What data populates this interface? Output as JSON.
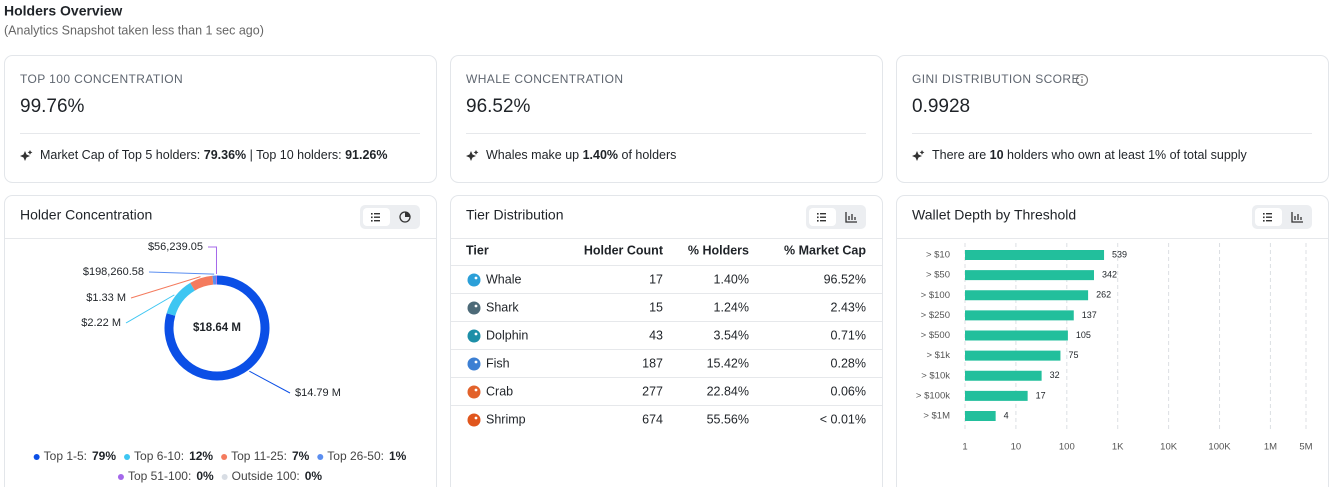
{
  "header": {
    "title": "Holders Overview",
    "subtitle": "(Analytics Snapshot taken less than 1 sec ago)"
  },
  "stats": [
    {
      "label": "TOP 100 CONCENTRATION",
      "value": "99.76%",
      "note": [
        "Market Cap of Top 5 holders: ",
        "79.36%",
        " | Top 10 holders: ",
        "91.26%"
      ]
    },
    {
      "label": "WHALE CONCENTRATION",
      "value": "96.52%",
      "note": [
        "Whales make up ",
        "1.40%",
        " of holders"
      ]
    },
    {
      "label": "GINI DISTRIBUTION SCORE",
      "value": "0.9928",
      "note": [
        "There are ",
        "10",
        " holders who own at least 1% of total supply"
      ]
    }
  ],
  "tier_table": {
    "title": "Tier Distribution",
    "columns": [
      "Tier",
      "Holder Count",
      "% Holders",
      "% Market Cap"
    ],
    "rows": [
      [
        "Whale",
        17,
        "1.40%",
        "96.52%"
      ],
      [
        "Shark",
        15,
        "1.24%",
        "2.43%"
      ],
      [
        "Dolphin",
        43,
        "3.54%",
        "0.71%"
      ],
      [
        "Fish",
        187,
        "15.42%",
        "0.28%"
      ],
      [
        "Crab",
        277,
        "22.84%",
        "0.06%"
      ],
      [
        "Shrimp",
        674,
        "55.56%",
        "< 0.01%"
      ]
    ]
  },
  "chart_data": [
    {
      "type": "donut",
      "title": "Holder Concentration",
      "center_label": "$18.64 M",
      "categories": [
        "Top 1-5:",
        "Top 6-10:",
        "Top 11-25:",
        "Top 26-50:",
        "Top 51-100:",
        "Outside 100:"
      ],
      "values": [
        14790000,
        2220000,
        1330000,
        198260.58,
        56239.05,
        0
      ],
      "value_labels": [
        "$14.79 M",
        "$2.22 M",
        "$1.33 M",
        "$198,260.58",
        "$56,239.05",
        null
      ],
      "shares": [
        79,
        12,
        7,
        1,
        0,
        0
      ],
      "share_labels": [
        "79%",
        "12%",
        "7%",
        "1%",
        "0%",
        "0%"
      ],
      "colors": [
        "#0b4fe6",
        "#3ec6f2",
        "#f47b5e",
        "#5b8ef0",
        "#a468ea",
        "#d8dde4"
      ]
    },
    {
      "type": "hbar",
      "title": "Wallet Depth by Threshold",
      "categories": [
        "> $10",
        "> $50",
        "> $100",
        "> $250",
        "> $500",
        "> $1k",
        "> $10k",
        "> $100k",
        "> $1M"
      ],
      "values": [
        539,
        342,
        262,
        137,
        105,
        75,
        32,
        17,
        4
      ],
      "color": "#22bf9c",
      "xscale": "log",
      "xlim": [
        1,
        5000000
      ],
      "xticks": [
        1,
        10,
        100,
        {
          "value": 1000,
          "label": "1K"
        },
        {
          "value": 10000,
          "label": "10K"
        },
        {
          "value": 100000,
          "label": "100K"
        },
        {
          "value": 1000000,
          "label": "1M"
        },
        {
          "value": 5000000,
          "label": "5M"
        }
      ],
      "grid": true
    }
  ]
}
